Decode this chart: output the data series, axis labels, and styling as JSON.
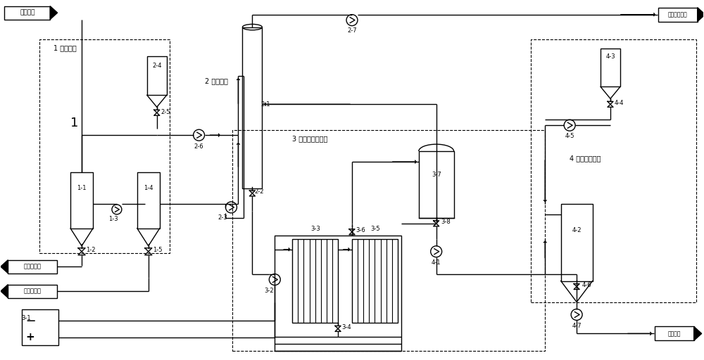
{
  "bg_color": "#ffffff",
  "lc": "#000000",
  "labels": {
    "ammonia_water": "氨氮废水",
    "harmless_gas": "无害气体排空",
    "sludge1": "污泥送处理",
    "sludge2": "污泥送处理",
    "std_discharge": "达标排放",
    "stage1": "1 过滤工段",
    "stage2": "2 喷淋工段",
    "stage3": "3 电催化氧化工段",
    "stage4": "4 水质调节工段",
    "num1": "1",
    "eq11": "1-1",
    "eq12": "1-2",
    "eq13": "1-3",
    "eq14": "1-4",
    "eq15": "1-5",
    "eq21": "2-1",
    "eq22": "2-2",
    "eq23": "2-3",
    "eq24": "2-4",
    "eq25": "2-5",
    "eq26": "2-6",
    "eq27": "2-7",
    "eq31": "3-1",
    "eq32": "3-2",
    "eq33": "3-3",
    "eq34": "3-4",
    "eq35": "3-5",
    "eq36": "3-6",
    "eq37": "3-7",
    "eq38": "3-8",
    "eq41": "4-1",
    "eq42": "4-2",
    "eq43": "4-3",
    "eq44": "4-4",
    "eq45": "4-5",
    "eq46": "4-6",
    "eq47": "4-7"
  }
}
